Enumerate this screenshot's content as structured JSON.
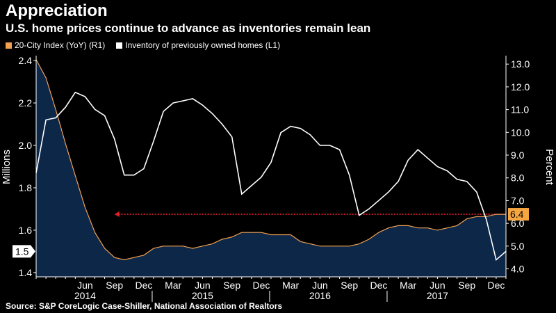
{
  "title": "Appreciation",
  "subtitle": "U.S. home prices continue to advance as inventories remain lean",
  "source": "Source: S&P CoreLogic Case-Shiller, National Association of Realtors",
  "colors": {
    "background": "#000000",
    "index_line": "#f0a050",
    "index_area": "#0c2748",
    "inventory_line": "#ffffff",
    "reference_line": "#e0202e",
    "last_value_badge": "#f5a640"
  },
  "chart_data": {
    "type": "line",
    "title": "Appreciation",
    "subtitle": "U.S. home prices continue to advance as inventories remain lean",
    "x": [
      "2014-01",
      "2014-02",
      "2014-03",
      "2014-04",
      "2014-05",
      "2014-06",
      "2014-07",
      "2014-08",
      "2014-09",
      "2014-10",
      "2014-11",
      "2014-12",
      "2015-01",
      "2015-02",
      "2015-03",
      "2015-04",
      "2015-05",
      "2015-06",
      "2015-07",
      "2015-08",
      "2015-09",
      "2015-10",
      "2015-11",
      "2015-12",
      "2016-01",
      "2016-02",
      "2016-03",
      "2016-04",
      "2016-05",
      "2016-06",
      "2016-07",
      "2016-08",
      "2016-09",
      "2016-10",
      "2016-11",
      "2016-12",
      "2017-01",
      "2017-02",
      "2017-03",
      "2017-04",
      "2017-05",
      "2017-06",
      "2017-07",
      "2017-08",
      "2017-09",
      "2017-10",
      "2017-11",
      "2017-12",
      "2018-01"
    ],
    "x_tick_labels": [
      {
        "date": "2014-06",
        "label": "Jun"
      },
      {
        "date": "2014-09",
        "label": "Sep"
      },
      {
        "date": "2014-12",
        "label": "Dec"
      },
      {
        "date": "2015-03",
        "label": "Mar"
      },
      {
        "date": "2015-06",
        "label": "Jun"
      },
      {
        "date": "2015-09",
        "label": "Sep"
      },
      {
        "date": "2015-12",
        "label": "Dec"
      },
      {
        "date": "2016-03",
        "label": "Mar"
      },
      {
        "date": "2016-06",
        "label": "Jun"
      },
      {
        "date": "2016-09",
        "label": "Sep"
      },
      {
        "date": "2016-12",
        "label": "Dec"
      },
      {
        "date": "2017-03",
        "label": "Mar"
      },
      {
        "date": "2017-06",
        "label": "Jun"
      },
      {
        "date": "2017-09",
        "label": "Sep"
      },
      {
        "date": "2017-12",
        "label": "Dec"
      }
    ],
    "year_labels": [
      {
        "date": "2014-06",
        "label": "2014"
      },
      {
        "date": "2015-06",
        "label": "2015"
      },
      {
        "date": "2016-06",
        "label": "2016"
      },
      {
        "date": "2017-06",
        "label": "2017"
      }
    ],
    "year_dividers": [
      "2014-12",
      "2015-12",
      "2016-12"
    ],
    "series": [
      {
        "name": "20-City Index (YoY) (R1)",
        "axis": "right",
        "values": [
          13.2,
          12.4,
          11.0,
          9.5,
          8.1,
          6.7,
          5.6,
          4.9,
          4.5,
          4.4,
          4.5,
          4.6,
          4.9,
          5.0,
          5.0,
          5.0,
          4.9,
          5.0,
          5.1,
          5.3,
          5.4,
          5.6,
          5.6,
          5.6,
          5.5,
          5.5,
          5.5,
          5.2,
          5.1,
          5.0,
          5.0,
          5.0,
          5.0,
          5.1,
          5.3,
          5.6,
          5.8,
          5.9,
          5.9,
          5.8,
          5.8,
          5.7,
          5.8,
          5.9,
          6.2,
          6.3,
          6.3,
          6.4,
          6.4
        ],
        "last_value_label": "6.4"
      },
      {
        "name": "Inventory of previously owned homes (L1)",
        "axis": "left",
        "values": [
          1.87,
          2.12,
          2.13,
          2.18,
          2.25,
          2.23,
          2.17,
          2.14,
          2.03,
          1.86,
          1.86,
          1.89,
          2.02,
          2.16,
          2.2,
          2.21,
          2.22,
          2.19,
          2.15,
          2.1,
          2.04,
          1.77,
          1.81,
          1.85,
          1.92,
          2.06,
          2.09,
          2.08,
          2.05,
          2.0,
          2.0,
          1.98,
          1.86,
          1.67,
          1.7,
          1.74,
          1.78,
          1.83,
          1.93,
          1.98,
          1.94,
          1.9,
          1.88,
          1.84,
          1.83,
          1.78,
          1.65,
          1.46,
          1.5
        ],
        "last_value_label": "1.5"
      }
    ],
    "y_left": {
      "label": "Millions",
      "range": [
        1.38,
        2.41
      ],
      "ticks": [
        1.4,
        1.6,
        1.8,
        2.0,
        2.2,
        2.4
      ],
      "tick_labels": [
        "1.4",
        "1.6",
        "1.8",
        "2.0",
        "2.2",
        "2.4"
      ]
    },
    "y_right": {
      "label": "Percent",
      "range": [
        3.65,
        13.25
      ],
      "ticks": [
        4,
        5,
        6,
        7,
        8,
        9,
        10,
        11,
        12,
        13
      ],
      "tick_labels": [
        "4.0",
        "5.0",
        "6.0",
        "7.0",
        "8.0",
        "9.0",
        "10.0",
        "11.0",
        "12.0",
        "13.0"
      ]
    },
    "reference_line": {
      "value": 6.4,
      "axis": "right",
      "from": "2014-09",
      "to": "2018-01",
      "style": "dotted arrow"
    },
    "legend": {
      "placement": "top-left",
      "entries": [
        "20-City Index (YoY) (R1)",
        "Inventory of previously owned homes (L1)"
      ]
    },
    "grid": false
  }
}
